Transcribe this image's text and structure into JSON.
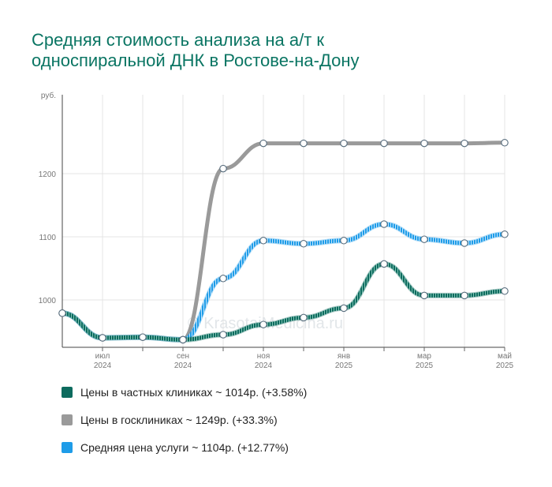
{
  "title_lines": [
    "Средняя стоимость анализа на а/т к",
    "односпиральной ДНК в Ростове-на-Дону"
  ],
  "watermark": "© KrasotaiMedicina.ru",
  "chart_data": {
    "type": "line",
    "y_unit": "руб.",
    "ylim": [
      925,
      1325
    ],
    "yticks": [
      1000,
      1100,
      1200
    ],
    "x": [
      0,
      1,
      2,
      3,
      4,
      5,
      6,
      7,
      8,
      9,
      10,
      11
    ],
    "xtick_labels": [
      {
        "index": 1,
        "month": "июл",
        "year": "2024"
      },
      {
        "index": 3,
        "month": "сен",
        "year": "2024"
      },
      {
        "index": 5,
        "month": "ноя",
        "year": "2024"
      },
      {
        "index": 7,
        "month": "янв",
        "year": "2025"
      },
      {
        "index": 9,
        "month": "мар",
        "year": "2025"
      },
      {
        "index": 11,
        "month": "май",
        "year": "2025"
      }
    ],
    "grid": true,
    "legend_position": "bottom",
    "series": [
      {
        "name": "Цены в частных клиниках",
        "color": "#0d6b5e",
        "style": "striped-dark",
        "values": [
          979,
          940,
          941,
          937,
          945,
          961,
          972,
          987,
          1057,
          1007,
          1007,
          1014
        ]
      },
      {
        "name": "Цены в госклиниках",
        "color": "#9a9a9a",
        "style": "gray",
        "values": [
          null,
          null,
          null,
          937,
          1208,
          1248,
          1248,
          1248,
          1248,
          1248,
          1248,
          1249
        ]
      },
      {
        "name": "Средняя цена услуги",
        "color": "#1e9ce8",
        "style": "striped-blue",
        "values": [
          979,
          940,
          941,
          937,
          1034,
          1094,
          1089,
          1094,
          1120,
          1096,
          1090,
          1104
        ]
      }
    ]
  },
  "legend": [
    {
      "label": "Цены в частных клиниках ~ 1014р. (+3.58%)",
      "color": "#0d6b5e"
    },
    {
      "label": "Цены в госклиниках ~ 1249р. (+33.3%)",
      "color": "#9a9a9a"
    },
    {
      "label": "Средняя цена услуги ~ 1104р. (+12.77%)",
      "color": "#1e9ce8"
    }
  ]
}
